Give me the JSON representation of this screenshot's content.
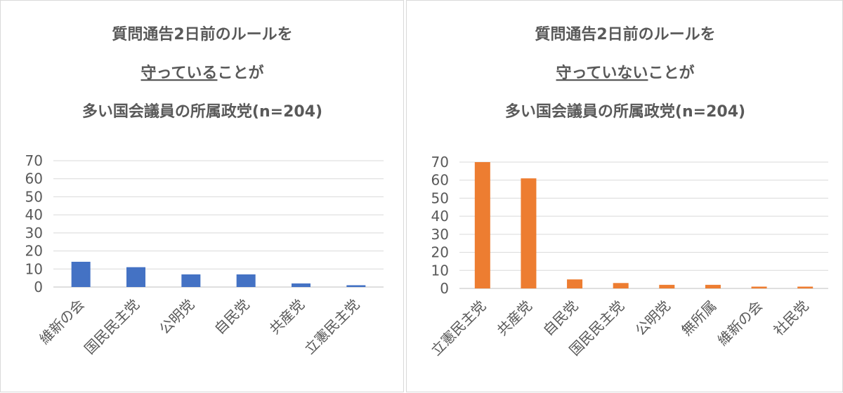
{
  "chart_data": [
    {
      "type": "bar",
      "title": [
        "質問通告2日前のルールを",
        "守っている",
        "ことが",
        "多い国会議員の所属政党(n=204)"
      ],
      "categories": [
        "維新の会",
        "国民民主党",
        "公明党",
        "自民党",
        "共産党",
        "立憲民主党"
      ],
      "values": [
        14,
        11,
        7,
        7,
        2,
        1
      ],
      "ylim": [
        0,
        70
      ],
      "yticks": [
        0,
        10,
        20,
        30,
        40,
        50,
        60,
        70
      ],
      "bar_color": "#4472C4",
      "grid": true
    },
    {
      "type": "bar",
      "title": [
        "質問通告2日前のルールを",
        "守っていない",
        "ことが",
        "多い国会議員の所属政党(n=204)"
      ],
      "categories": [
        "立憲民主党",
        "共産党",
        "自民党",
        "国民民主党",
        "公明党",
        "無所属",
        "維新の会",
        "社民党"
      ],
      "values": [
        70,
        61,
        5,
        3,
        2,
        2,
        1,
        1
      ],
      "ylim": [
        0,
        70
      ],
      "yticks": [
        0,
        10,
        20,
        30,
        40,
        50,
        60,
        70
      ],
      "bar_color": "#ED7D31",
      "grid": true
    }
  ]
}
